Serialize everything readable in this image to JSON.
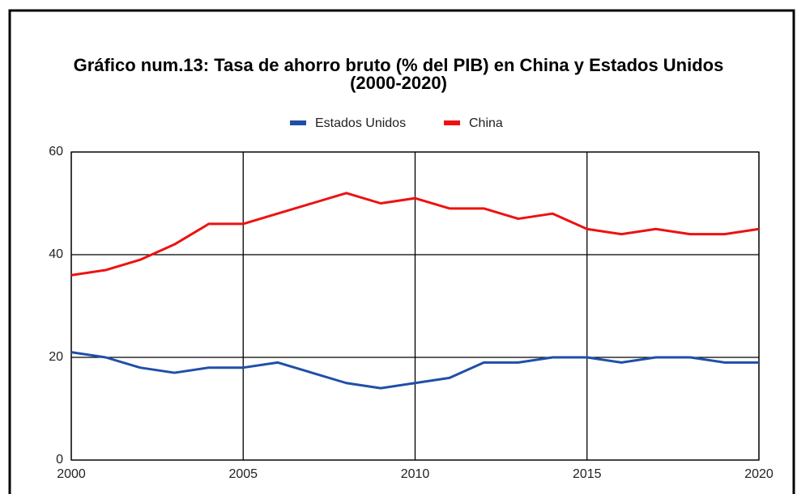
{
  "chart_data": {
    "type": "line",
    "title": "Gráfico num.13: Tasa de ahorro bruto (% del PIB) en China y Estados Unidos (2000-2020)",
    "x": [
      2000,
      2001,
      2002,
      2003,
      2004,
      2005,
      2006,
      2007,
      2008,
      2009,
      2010,
      2011,
      2012,
      2013,
      2014,
      2015,
      2016,
      2017,
      2018,
      2019,
      2020
    ],
    "series": [
      {
        "name": "Estados Unidos",
        "color": "#1f4fa8",
        "values": [
          21,
          20,
          18,
          17,
          18,
          18,
          19,
          17,
          15,
          14,
          15,
          16,
          19,
          19,
          20,
          20,
          19,
          20,
          20,
          19,
          19
        ]
      },
      {
        "name": "China",
        "color": "#ee1111",
        "values": [
          36,
          37,
          39,
          42,
          46,
          46,
          48,
          50,
          52,
          50,
          51,
          49,
          49,
          47,
          48,
          45,
          44,
          45,
          44,
          44,
          45
        ]
      }
    ],
    "xlim": [
      2000,
      2020
    ],
    "xticks": [
      2000,
      2005,
      2010,
      2015,
      2020
    ],
    "ylim": [
      0,
      60
    ],
    "yticks": [
      0,
      20,
      40,
      60
    ],
    "grid": true,
    "legend": "top"
  }
}
